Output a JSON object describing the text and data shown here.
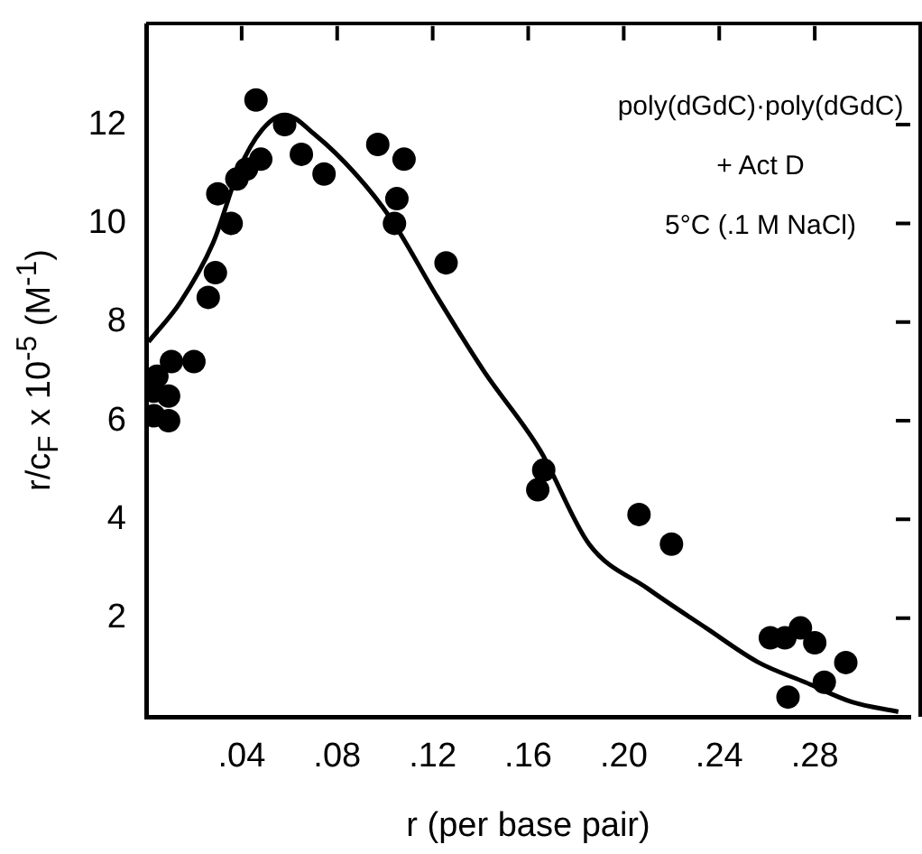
{
  "chart_data": {
    "type": "scatter",
    "xlabel": "r (per base pair)",
    "ylabel": "r/c$_{F}$ x 10$^{-5}$ (M$^{-1}$)",
    "annotations": [
      "poly(dGdC)·poly(dGdC)",
      "+ Act D",
      "5°C (.1 M NaCl)"
    ],
    "xlim": [
      0,
      0.32
    ],
    "xticks": [
      {
        "value": 0.04,
        "label": ".04"
      },
      {
        "value": 0.08,
        "label": ".08"
      },
      {
        "value": 0.12,
        "label": ".12"
      },
      {
        "value": 0.16,
        "label": ".16"
      },
      {
        "value": 0.2,
        "label": ".20"
      },
      {
        "value": 0.24,
        "label": ".24"
      },
      {
        "value": 0.28,
        "label": ".28"
      }
    ],
    "ylim": [
      0,
      14
    ],
    "yticks": [
      2,
      4,
      6,
      8,
      10,
      12
    ],
    "marker": "circle",
    "series": [
      {
        "type": "scatter",
        "color": "#000000",
        "x": [
          0.0033,
          0.0033,
          0.0045,
          0.0094,
          0.0094,
          0.0106,
          0.02,
          0.026,
          0.029,
          0.03,
          0.0356,
          0.038,
          0.042,
          0.046,
          0.048,
          0.058,
          0.065,
          0.0745,
          0.097,
          0.104,
          0.105,
          0.108,
          0.1256,
          0.164,
          0.1665,
          0.2064,
          0.22,
          0.2614,
          0.2675,
          0.2688,
          0.274,
          0.28,
          0.284,
          0.293
        ],
        "values": [
          6.1,
          6.6,
          6.9,
          6.0,
          6.5,
          7.2,
          7.2,
          8.5,
          9.0,
          10.6,
          10.0,
          10.9,
          11.1,
          12.5,
          11.3,
          12.0,
          11.4,
          11.0,
          11.6,
          10.0,
          10.5,
          11.3,
          9.2,
          4.6,
          5.0,
          4.1,
          3.5,
          1.6,
          1.6,
          0.4,
          1.8,
          1.5,
          0.7,
          1.1
        ]
      },
      {
        "type": "line",
        "marker": "none",
        "color": "#000000",
        "x": [
          0.001,
          0.0143,
          0.028,
          0.039,
          0.0486,
          0.058,
          0.0706,
          0.0877,
          0.1024,
          0.122,
          0.1415,
          0.165,
          0.1855,
          0.21,
          0.2345,
          0.2565,
          0.276,
          0.2956,
          0.315
        ],
        "values": [
          7.6,
          8.4,
          9.6,
          11.1,
          11.9,
          12.2,
          11.8,
          11.0,
          10.1,
          8.5,
          7.0,
          5.4,
          3.5,
          2.6,
          1.8,
          1.1,
          0.7,
          0.3,
          0.1
        ]
      }
    ]
  }
}
